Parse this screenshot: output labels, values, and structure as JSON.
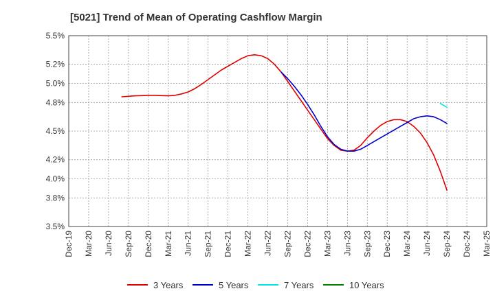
{
  "chart_data": {
    "type": "line",
    "title": "[5021]  Trend of Mean of Operating Cashflow Margin",
    "xlabel": "",
    "ylabel": "",
    "x_ticks": [
      "Dec-19",
      "Mar-20",
      "Jun-20",
      "Sep-20",
      "Dec-20",
      "Mar-21",
      "Jun-21",
      "Sep-21",
      "Dec-21",
      "Mar-22",
      "Jun-22",
      "Sep-22",
      "Dec-22",
      "Mar-23",
      "Jun-23",
      "Sep-23",
      "Dec-23",
      "Mar-24",
      "Jun-24",
      "Sep-24",
      "Dec-24",
      "Mar-25"
    ],
    "y_ticks": [
      "3.5%",
      "3.8%",
      "4.0%",
      "4.2%",
      "4.5%",
      "4.8%",
      "5.0%",
      "5.2%",
      "5.5%"
    ],
    "ylim": [
      3.5,
      5.5
    ],
    "grid": true,
    "legend_position": "bottom",
    "series": [
      {
        "name": "3 Years",
        "color": "#dd0000",
        "x": [
          "Aug-20",
          "Sep-20",
          "Oct-20",
          "Nov-20",
          "Dec-20",
          "Jan-21",
          "Feb-21",
          "Mar-21",
          "Apr-21",
          "May-21",
          "Jun-21",
          "Jul-21",
          "Aug-21",
          "Sep-21",
          "Oct-21",
          "Nov-21",
          "Dec-21",
          "Jan-22",
          "Feb-22",
          "Mar-22",
          "Apr-22",
          "May-22",
          "Jun-22",
          "Jul-22",
          "Aug-22",
          "Sep-22",
          "Oct-22",
          "Nov-22",
          "Dec-22",
          "Jan-23",
          "Feb-23",
          "Mar-23",
          "Apr-23",
          "May-23",
          "Jun-23",
          "Jul-23",
          "Aug-23",
          "Sep-23",
          "Oct-23",
          "Nov-23",
          "Dec-23",
          "Jan-24",
          "Feb-24",
          "Mar-24",
          "Apr-24",
          "May-24",
          "Jun-24",
          "Jul-24",
          "Aug-24",
          "Sep-24"
        ],
        "values": [
          4.86,
          4.865,
          4.87,
          4.872,
          4.875,
          4.875,
          4.872,
          4.87,
          4.875,
          4.89,
          4.91,
          4.945,
          4.99,
          5.04,
          5.09,
          5.14,
          5.18,
          5.22,
          5.26,
          5.29,
          5.3,
          5.29,
          5.26,
          5.2,
          5.12,
          5.02,
          4.92,
          4.82,
          4.72,
          4.62,
          4.52,
          4.42,
          4.35,
          4.3,
          4.29,
          4.3,
          4.35,
          4.43,
          4.5,
          4.56,
          4.6,
          4.62,
          4.62,
          4.6,
          4.55,
          4.48,
          4.38,
          4.25,
          4.08,
          3.88
        ]
      },
      {
        "name": "5 Years",
        "color": "#0000cc",
        "x": [
          "Aug-22",
          "Sep-22",
          "Oct-22",
          "Nov-22",
          "Dec-22",
          "Jan-23",
          "Feb-23",
          "Mar-23",
          "Apr-23",
          "May-23",
          "Jun-23",
          "Jul-23",
          "Aug-23",
          "Sep-23",
          "Oct-23",
          "Nov-23",
          "Dec-23",
          "Jan-24",
          "Feb-24",
          "Mar-24",
          "Apr-24",
          "May-24",
          "Jun-24",
          "Jul-24",
          "Aug-24",
          "Sep-24"
        ],
        "values": [
          5.12,
          5.05,
          4.97,
          4.88,
          4.78,
          4.67,
          4.55,
          4.44,
          4.36,
          4.31,
          4.29,
          4.29,
          4.31,
          4.35,
          4.39,
          4.43,
          4.47,
          4.51,
          4.55,
          4.59,
          4.63,
          4.65,
          4.66,
          4.65,
          4.62,
          4.58
        ]
      },
      {
        "name": "7 Years",
        "color": "#00e5e5",
        "x": [
          "Aug-24",
          "Sep-24"
        ],
        "values": [
          4.79,
          4.75
        ]
      },
      {
        "name": "10 Years",
        "color": "#008000",
        "x": [],
        "values": []
      }
    ]
  }
}
